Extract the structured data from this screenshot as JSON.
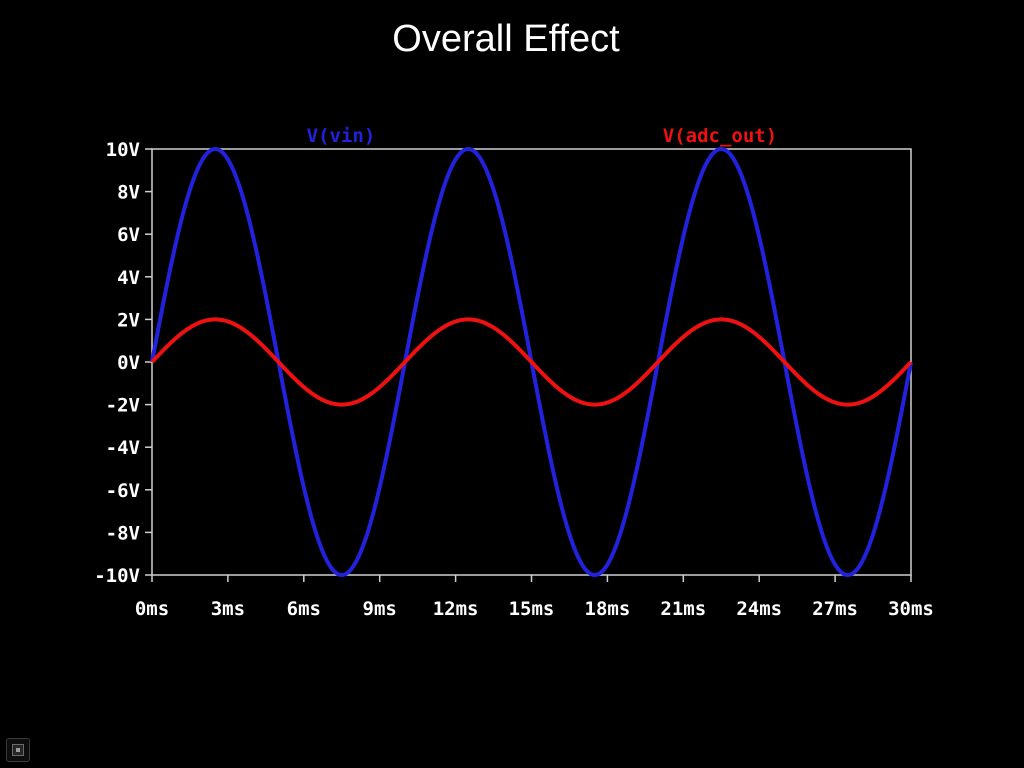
{
  "slide": {
    "title": "Overall Effect"
  },
  "chart_data": {
    "type": "line",
    "x_unit": "ms",
    "y_unit": "V",
    "xlim": [
      0,
      30
    ],
    "ylim": [
      -10,
      10
    ],
    "x_ticks": [
      "0ms",
      "3ms",
      "6ms",
      "9ms",
      "12ms",
      "15ms",
      "18ms",
      "21ms",
      "24ms",
      "27ms",
      "30ms"
    ],
    "y_ticks": [
      "10V",
      "8V",
      "6V",
      "4V",
      "2V",
      "0V",
      "-2V",
      "-4V",
      "-6V",
      "-8V",
      "-10V"
    ],
    "grid": false,
    "legend_position": "top",
    "series": [
      {
        "name": "V(vin)",
        "color": "#2222dd",
        "shape": "sine",
        "amplitude": 10,
        "offset": 0,
        "frequency_hz": 100,
        "sample_x_ms": [
          0,
          2.5,
          5,
          7.5,
          10,
          12.5,
          15,
          17.5,
          20,
          22.5,
          25,
          27.5,
          30
        ],
        "sample_y_v": [
          0,
          10,
          0,
          -10,
          0,
          10,
          0,
          -10,
          0,
          10,
          0,
          -10,
          0
        ]
      },
      {
        "name": "V(adc_out)",
        "color": "#ee1111",
        "shape": "sine",
        "amplitude": 2,
        "offset": 0,
        "frequency_hz": 100,
        "sample_x_ms": [
          0,
          2.5,
          5,
          7.5,
          10,
          12.5,
          15,
          17.5,
          20,
          22.5,
          25,
          27.5,
          30
        ],
        "sample_y_v": [
          0,
          2,
          0,
          -2,
          0,
          2,
          0,
          -2,
          0,
          2,
          0,
          -2,
          0
        ]
      }
    ]
  },
  "colors": {
    "background": "#000000",
    "axis": "#d0d0d0",
    "tick_label": "#ffffff",
    "title": "#ffffff"
  },
  "controls": {
    "nav_icon": "slide-navigation-icon"
  }
}
